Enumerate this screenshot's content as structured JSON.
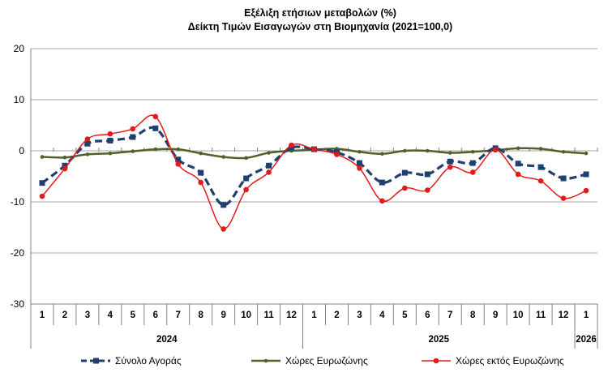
{
  "chart_data": {
    "type": "line",
    "title": "Εξέλιξη ετήσιων μεταβολών (%)",
    "subtitle": "Δείκτη Τιμών Εισαγωγών στη Βιομηχανία (2021=100,0)",
    "categories": [
      "1",
      "2",
      "3",
      "4",
      "5",
      "6",
      "7",
      "8",
      "9",
      "10",
      "11",
      "12",
      "1",
      "2",
      "3",
      "4",
      "5",
      "6",
      "7",
      "8",
      "9",
      "10",
      "11",
      "12",
      "1"
    ],
    "years": [
      {
        "label": "2024",
        "count": 12
      },
      {
        "label": "2025",
        "count": 12
      },
      {
        "label": "2026",
        "count": 1
      }
    ],
    "ylim": [
      -30,
      20
    ],
    "yticks": [
      20,
      10,
      0,
      -10,
      -20,
      -30
    ],
    "grid": true,
    "legend_position": "bottom",
    "series": [
      {
        "name": "Σύνολο Αγοράς",
        "color": "#1f3f6e",
        "style": "dashed-square-markers",
        "values": [
          -6.3,
          -2.9,
          1.4,
          2.0,
          2.7,
          4.4,
          -1.7,
          -4.3,
          -10.6,
          -5.4,
          -2.9,
          0.6,
          0.3,
          -0.3,
          -2.4,
          -6.2,
          -4.3,
          -4.6,
          -2.1,
          -2.4,
          0.5,
          -2.5,
          -3.2,
          -5.4,
          -4.6
        ]
      },
      {
        "name": "Χώρες Ευρωζώνης",
        "color": "#4f6228",
        "style": "solid-small-markers",
        "values": [
          -1.2,
          -1.3,
          -0.7,
          -0.5,
          -0.1,
          0.3,
          0.3,
          -0.5,
          -1.2,
          -1.4,
          -0.4,
          0.0,
          0.2,
          0.4,
          -0.2,
          -0.6,
          0.0,
          0.0,
          -0.4,
          -0.2,
          0.1,
          0.5,
          0.4,
          -0.2,
          -0.5
        ]
      },
      {
        "name": "Χώρες εκτός Ευρωζώνης",
        "color": "#e31a1c",
        "style": "smooth-circle-markers",
        "values": [
          -8.9,
          -3.5,
          2.3,
          3.3,
          4.3,
          6.7,
          -2.6,
          -6.2,
          -15.3,
          -7.6,
          -4.2,
          1.1,
          0.3,
          -0.7,
          -3.4,
          -9.8,
          -7.3,
          -7.7,
          -3.2,
          -4.2,
          0.2,
          -4.6,
          -5.9,
          -9.3,
          -7.8
        ]
      }
    ]
  }
}
